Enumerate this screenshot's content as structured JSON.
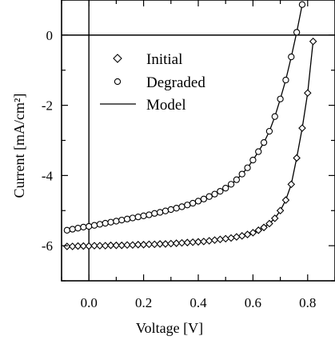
{
  "chart_data": {
    "type": "scatter",
    "xlabel": "Voltage [V]",
    "ylabel": "Current [mA/cm²]",
    "xlim": [
      -0.1,
      0.9
    ],
    "ylim": [
      -7,
      1
    ],
    "xticks": [
      0.0,
      0.2,
      0.4,
      0.6,
      0.8
    ],
    "yticks": [
      0,
      -2,
      -4,
      -6
    ],
    "xtick_labels": [
      "0.0",
      "0.2",
      "0.4",
      "0.6",
      "0.8"
    ],
    "ytick_labels": [
      "0",
      "-2",
      "-4",
      "-6"
    ],
    "legend_position": "upper-left",
    "reference_lines": {
      "x": 0,
      "y": 0
    },
    "series": [
      {
        "name": "Initial",
        "marker": "diamond",
        "x": [
          -0.08,
          -0.06,
          -0.04,
          -0.02,
          0.0,
          0.02,
          0.04,
          0.06,
          0.08,
          0.1,
          0.12,
          0.14,
          0.16,
          0.18,
          0.2,
          0.22,
          0.24,
          0.26,
          0.28,
          0.3,
          0.32,
          0.34,
          0.36,
          0.38,
          0.4,
          0.42,
          0.44,
          0.46,
          0.48,
          0.5,
          0.52,
          0.54,
          0.56,
          0.58,
          0.6,
          0.62,
          0.64,
          0.66,
          0.68,
          0.7,
          0.72,
          0.74,
          0.76,
          0.78,
          0.8,
          0.82
        ],
        "y": [
          -6.02,
          -6.02,
          -6.01,
          -6.01,
          -6.01,
          -6.0,
          -6.0,
          -6.0,
          -5.99,
          -5.99,
          -5.99,
          -5.98,
          -5.98,
          -5.97,
          -5.97,
          -5.96,
          -5.96,
          -5.95,
          -5.95,
          -5.94,
          -5.93,
          -5.92,
          -5.91,
          -5.9,
          -5.89,
          -5.88,
          -5.86,
          -5.84,
          -5.82,
          -5.8,
          -5.78,
          -5.75,
          -5.72,
          -5.68,
          -5.63,
          -5.56,
          -5.48,
          -5.37,
          -5.22,
          -5.0,
          -4.7,
          -4.25,
          -3.5,
          -2.65,
          -1.65,
          -0.18
        ]
      },
      {
        "name": "Degraded",
        "marker": "circle",
        "x": [
          -0.08,
          -0.06,
          -0.04,
          -0.02,
          0.0,
          0.02,
          0.04,
          0.06,
          0.08,
          0.1,
          0.12,
          0.14,
          0.16,
          0.18,
          0.2,
          0.22,
          0.24,
          0.26,
          0.28,
          0.3,
          0.32,
          0.34,
          0.36,
          0.38,
          0.4,
          0.42,
          0.44,
          0.46,
          0.48,
          0.5,
          0.52,
          0.54,
          0.56,
          0.58,
          0.6,
          0.62,
          0.64,
          0.66,
          0.68,
          0.7,
          0.72,
          0.74,
          0.76,
          0.78,
          0.8
        ],
        "y": [
          -5.56,
          -5.53,
          -5.5,
          -5.47,
          -5.45,
          -5.42,
          -5.39,
          -5.36,
          -5.33,
          -5.3,
          -5.27,
          -5.24,
          -5.21,
          -5.18,
          -5.15,
          -5.12,
          -5.08,
          -5.05,
          -5.01,
          -4.97,
          -4.93,
          -4.89,
          -4.84,
          -4.79,
          -4.73,
          -4.67,
          -4.6,
          -4.53,
          -4.45,
          -4.36,
          -4.25,
          -4.12,
          -3.96,
          -3.78,
          -3.56,
          -3.32,
          -3.06,
          -2.74,
          -2.32,
          -1.82,
          -1.28,
          -0.62,
          0.08,
          0.87,
          1.6
        ]
      },
      {
        "name": "Model",
        "marker": "line"
      }
    ]
  }
}
